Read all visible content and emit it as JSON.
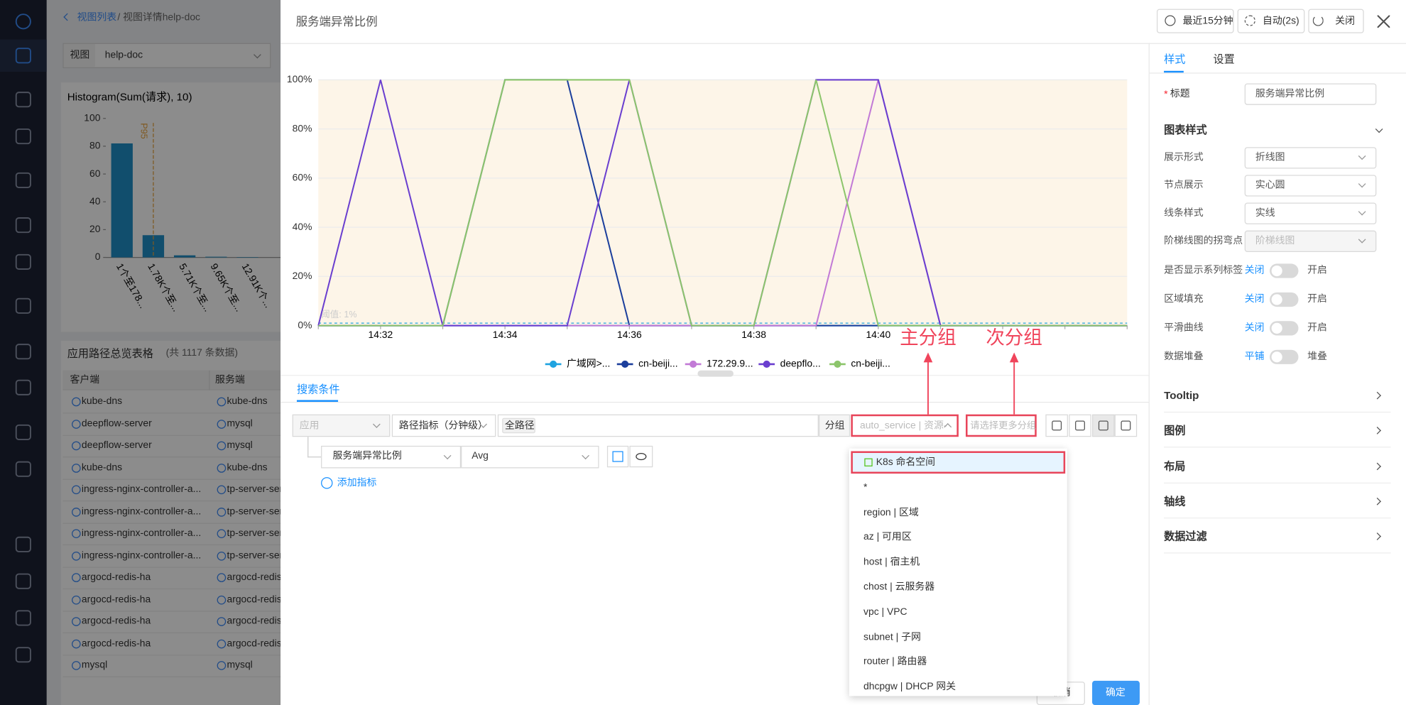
{
  "nav": {
    "breadcrumb_link": "视图列表",
    "breadcrumb_current": "/ 视图详情help-doc",
    "view_label": "视图",
    "view_value": "help-doc"
  },
  "chart_data": [
    {
      "type": "line",
      "categories": [
        null,
        "14:32",
        null,
        "14:34",
        null,
        "14:36",
        null,
        "14:38",
        null,
        "14:40",
        null,
        null,
        null,
        null
      ],
      "series": [
        {
          "name": "广域网>...",
          "color": "#1fa3e0",
          "values": [
            0,
            0,
            0,
            0,
            0,
            0,
            0,
            0,
            0,
            0,
            0,
            0,
            0,
            0
          ]
        },
        {
          "name": "cn-beiji...",
          "color": "#1c3f9c",
          "values": [
            0,
            0,
            0,
            100,
            100,
            0,
            0,
            0,
            0,
            0,
            0,
            0,
            0,
            0
          ]
        },
        {
          "name": "172.29.9...",
          "color": "#c27ad6",
          "values": [
            0,
            0,
            0,
            0,
            0,
            0,
            0,
            0,
            0,
            100,
            0,
            0,
            0,
            0
          ]
        },
        {
          "name": "deepflo...",
          "color": "#6a3fcf",
          "values": [
            0,
            100,
            0,
            0,
            0,
            100,
            0,
            0,
            100,
            100,
            0,
            0,
            0,
            0
          ]
        },
        {
          "name": "cn-beiji...",
          "color": "#8cc56b",
          "values": [
            0,
            0,
            0,
            100,
            100,
            100,
            0,
            0,
            100,
            0,
            0,
            0,
            0,
            0
          ]
        }
      ],
      "ylim": [
        0,
        100
      ],
      "yticks": [
        {
          "value": 0,
          "label": "0%"
        },
        {
          "value": 20,
          "label": "20%"
        },
        {
          "value": 40,
          "label": "40%"
        },
        {
          "value": 60,
          "label": "60%"
        },
        {
          "value": 80,
          "label": "80%"
        },
        {
          "value": 100,
          "label": "100%"
        }
      ],
      "grid": true,
      "threshold": {
        "value": 1,
        "label": "阈值: 1%"
      }
    },
    {
      "type": "bar",
      "title": "Histogram(Sum(请求), 10)",
      "categories": [
        "1个至178...",
        "1.78K个至...",
        "5.71K个至...",
        "9.65K个至...",
        "12.91K个..."
      ],
      "values": [
        82,
        16,
        1.5,
        0.5,
        0.3
      ],
      "color": "#1f8fc6",
      "ylim": [
        0,
        100
      ],
      "yticks": [
        0,
        20,
        40,
        60,
        80,
        100
      ],
      "annotation": "P95"
    }
  ],
  "table": {
    "title": "应用路径总览表格",
    "count": "(共 1117 条数据)",
    "headers": [
      "客户端",
      "服务端"
    ],
    "rows": [
      [
        "kube-dns",
        "kube-dns"
      ],
      [
        "deepflow-server",
        "mysql"
      ],
      [
        "deepflow-server",
        "mysql"
      ],
      [
        "kube-dns",
        "kube-dns"
      ],
      [
        "ingress-nginx-controller-a...",
        "tp-server-ser"
      ],
      [
        "ingress-nginx-controller-a...",
        "tp-server-ser"
      ],
      [
        "ingress-nginx-controller-a...",
        "tp-server-ser"
      ],
      [
        "ingress-nginx-controller-a...",
        "tp-server-ser"
      ],
      [
        "argocd-redis-ha",
        "argocd-redis"
      ],
      [
        "argocd-redis-ha",
        "argocd-redis"
      ],
      [
        "argocd-redis-ha",
        "argocd-redis"
      ],
      [
        "argocd-redis-ha",
        "argocd-redis"
      ],
      [
        "mysql",
        "mysql"
      ]
    ]
  },
  "modal": {
    "title": "服务端异常比例",
    "time_range": "最近15分钟",
    "refresh": "自动(2s)",
    "close": "关闭"
  },
  "annotations": {
    "primary": "主分组",
    "secondary": "次分组"
  },
  "search": {
    "tab": "搜索条件",
    "app": "应用",
    "metric_type": "路径指标（分钟级）",
    "path": "全路径",
    "group_label": "分组",
    "group_value": "auto_service | 资源-",
    "more_group": "请选择更多分组",
    "metric": "服务端异常比例",
    "agg": "Avg",
    "add_metric": "添加指标"
  },
  "dropdown": [
    "K8s 命名空间",
    "*",
    "region | 区域",
    "az | 可用区",
    "host | 宿主机",
    "chost | 云服务器",
    "vpc | VPC",
    "subnet | 子网",
    "router | 路由器",
    "dhcpgw | DHCP 网关"
  ],
  "footer": {
    "cancel": "取消",
    "confirm": "确定"
  },
  "settings": {
    "tabs": [
      "样式",
      "设置"
    ],
    "title_required": "*",
    "title_label": "标题",
    "title_value": "服务端异常比例",
    "section": "图表样式",
    "selects": [
      {
        "label": "展示形式",
        "value": "折线图",
        "disabled": false
      },
      {
        "label": "节点展示",
        "value": "实心圆",
        "disabled": false
      },
      {
        "label": "线条样式",
        "value": "实线",
        "disabled": false
      },
      {
        "label": "阶梯线图的拐弯点",
        "value": "阶梯线图",
        "disabled": true
      }
    ],
    "toggles": [
      {
        "label": "是否显示系列标签",
        "off": "关闭",
        "on": "开启"
      },
      {
        "label": "区域填充",
        "off": "关闭",
        "on": "开启"
      },
      {
        "label": "平滑曲线",
        "off": "关闭",
        "on": "开启"
      },
      {
        "label": "数据堆叠",
        "off": "平铺",
        "on": "堆叠"
      }
    ],
    "sections": [
      "Tooltip",
      "图例",
      "布局",
      "轴线",
      "数据过滤"
    ]
  }
}
